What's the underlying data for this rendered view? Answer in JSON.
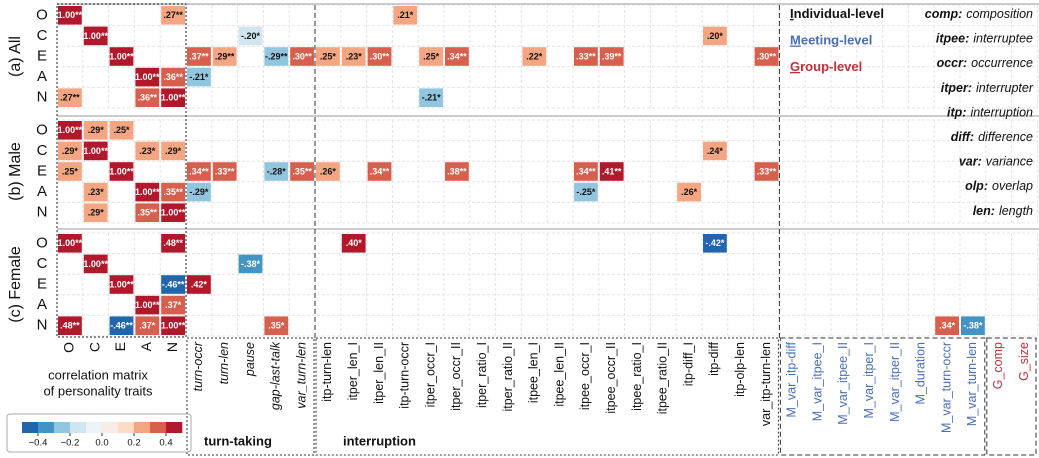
{
  "chart_data": {
    "type": "heatmap",
    "rows": [
      "O",
      "C",
      "E",
      "A",
      "N"
    ],
    "column_groups": [
      {
        "label_lines": [
          "correlation matrix",
          "of personality traits"
        ],
        "columns": [
          "O",
          "C",
          "E",
          "A",
          "N"
        ]
      },
      {
        "label": "turn-taking",
        "italic": true,
        "columns": [
          "turn-occr",
          "turn-len",
          "pause",
          "gap-last-talk",
          "var_turn-len"
        ]
      },
      {
        "label": "interruption",
        "columns": [
          "itp-turn-len",
          "itper_len_I",
          "itper_len_II",
          "itp-turn-occr",
          "itper_occr_I",
          "itper_occr_II",
          "itper_ratio_I",
          "itper_ratio_II",
          "itpee_len_I",
          "itpee_len_II",
          "itpee_occr_I",
          "itpee_occr_II",
          "itpee_ratio_I",
          "itpee_ratio_II",
          "itp-diff_I",
          "itp-diff",
          "itp-olp-len",
          "var_itp-turn-len"
        ]
      },
      {
        "color": "#4a6fb5",
        "columns": [
          "M_var_itp-diff",
          "M_var_itpee_I",
          "M_var_itpee_II",
          "M_var_itper_I",
          "M_var_itper_II",
          "M_duration",
          "M_var_turn-occr",
          "M_var_turn-len"
        ]
      },
      {
        "color": "#c0303a",
        "columns": [
          "G_comp",
          "G_size"
        ]
      }
    ],
    "panels": [
      {
        "label": "(a) All",
        "cells": [
          {
            "row": "O",
            "col": "O",
            "value": 1.0,
            "value_label": "1.00**"
          },
          {
            "row": "O",
            "col": "N",
            "value": 0.27,
            "value_label": ".27**"
          },
          {
            "row": "O",
            "col": "itp-turn-occr",
            "value": 0.21,
            "value_label": ".21*"
          },
          {
            "row": "C",
            "col": "C",
            "value": 1.0,
            "value_label": "1.00**"
          },
          {
            "row": "C",
            "col": "pause",
            "value": -0.2,
            "value_label": "-.20*"
          },
          {
            "row": "C",
            "col": "itp-diff",
            "value": 0.2,
            "value_label": ".20*"
          },
          {
            "row": "E",
            "col": "E",
            "value": 1.0,
            "value_label": "1.00**"
          },
          {
            "row": "E",
            "col": "turn-occr",
            "value": 0.37,
            "value_label": ".37**"
          },
          {
            "row": "E",
            "col": "turn-len",
            "value": 0.29,
            "value_label": ".29**"
          },
          {
            "row": "E",
            "col": "gap-last-talk",
            "value": -0.29,
            "value_label": "-.29**"
          },
          {
            "row": "E",
            "col": "var_turn-len",
            "value": 0.3,
            "value_label": ".30**"
          },
          {
            "row": "E",
            "col": "itp-turn-len",
            "value": 0.25,
            "value_label": ".25*"
          },
          {
            "row": "E",
            "col": "itper_len_I",
            "value": 0.23,
            "value_label": ".23*"
          },
          {
            "row": "E",
            "col": "itper_len_II",
            "value": 0.3,
            "value_label": ".30**"
          },
          {
            "row": "E",
            "col": "itper_occr_I",
            "value": 0.25,
            "value_label": ".25*"
          },
          {
            "row": "E",
            "col": "itper_occr_II",
            "value": 0.34,
            "value_label": ".34**"
          },
          {
            "row": "E",
            "col": "itpee_len_I",
            "value": 0.22,
            "value_label": ".22*"
          },
          {
            "row": "E",
            "col": "itpee_occr_I",
            "value": 0.33,
            "value_label": ".33**"
          },
          {
            "row": "E",
            "col": "itpee_occr_II",
            "value": 0.39,
            "value_label": ".39**"
          },
          {
            "row": "E",
            "col": "var_itp-turn-len",
            "value": 0.3,
            "value_label": ".30**"
          },
          {
            "row": "A",
            "col": "A",
            "value": 1.0,
            "value_label": "1.00**"
          },
          {
            "row": "A",
            "col": "N",
            "value": 0.36,
            "value_label": ".36**"
          },
          {
            "row": "A",
            "col": "turn-occr",
            "value": -0.21,
            "value_label": "-.21*"
          },
          {
            "row": "N",
            "col": "O",
            "value": 0.27,
            "value_label": ".27**"
          },
          {
            "row": "N",
            "col": "A",
            "value": 0.36,
            "value_label": ".36**"
          },
          {
            "row": "N",
            "col": "N",
            "value": 1.0,
            "value_label": "1.00**"
          },
          {
            "row": "N",
            "col": "itper_occr_I",
            "value": -0.21,
            "value_label": "-.21*"
          }
        ]
      },
      {
        "label": "(b) Male",
        "cells": [
          {
            "row": "O",
            "col": "O",
            "value": 1.0,
            "value_label": "1.00**"
          },
          {
            "row": "O",
            "col": "C",
            "value": 0.29,
            "value_label": ".29*"
          },
          {
            "row": "O",
            "col": "E",
            "value": 0.25,
            "value_label": ".25*"
          },
          {
            "row": "C",
            "col": "O",
            "value": 0.29,
            "value_label": ".29*"
          },
          {
            "row": "C",
            "col": "C",
            "value": 1.0,
            "value_label": "1.00**"
          },
          {
            "row": "C",
            "col": "A",
            "value": 0.23,
            "value_label": ".23*"
          },
          {
            "row": "C",
            "col": "N",
            "value": 0.29,
            "value_label": ".29*"
          },
          {
            "row": "C",
            "col": "itp-diff",
            "value": 0.24,
            "value_label": ".24*"
          },
          {
            "row": "E",
            "col": "O",
            "value": 0.25,
            "value_label": ".25*"
          },
          {
            "row": "E",
            "col": "E",
            "value": 1.0,
            "value_label": "1.00**"
          },
          {
            "row": "E",
            "col": "turn-occr",
            "value": 0.34,
            "value_label": ".34**"
          },
          {
            "row": "E",
            "col": "turn-len",
            "value": 0.33,
            "value_label": ".33**"
          },
          {
            "row": "E",
            "col": "gap-last-talk",
            "value": -0.28,
            "value_label": "-.28*"
          },
          {
            "row": "E",
            "col": "var_turn-len",
            "value": 0.35,
            "value_label": ".35**"
          },
          {
            "row": "E",
            "col": "itp-turn-len",
            "value": 0.26,
            "value_label": ".26*"
          },
          {
            "row": "E",
            "col": "itper_len_II",
            "value": 0.34,
            "value_label": ".34**"
          },
          {
            "row": "E",
            "col": "itper_occr_II",
            "value": 0.38,
            "value_label": ".38**"
          },
          {
            "row": "E",
            "col": "itpee_occr_I",
            "value": 0.34,
            "value_label": ".34**"
          },
          {
            "row": "E",
            "col": "itpee_occr_II",
            "value": 0.41,
            "value_label": ".41**"
          },
          {
            "row": "E",
            "col": "var_itp-turn-len",
            "value": 0.33,
            "value_label": ".33**"
          },
          {
            "row": "A",
            "col": "C",
            "value": 0.23,
            "value_label": ".23*"
          },
          {
            "row": "A",
            "col": "A",
            "value": 1.0,
            "value_label": "1.00**"
          },
          {
            "row": "A",
            "col": "N",
            "value": 0.35,
            "value_label": ".35**"
          },
          {
            "row": "A",
            "col": "turn-occr",
            "value": -0.29,
            "value_label": "-.29*"
          },
          {
            "row": "A",
            "col": "itpee_occr_I",
            "value": -0.25,
            "value_label": "-.25*"
          },
          {
            "row": "A",
            "col": "itp-diff_I",
            "value": 0.26,
            "value_label": ".26*"
          },
          {
            "row": "N",
            "col": "C",
            "value": 0.29,
            "value_label": ".29*"
          },
          {
            "row": "N",
            "col": "A",
            "value": 0.35,
            "value_label": ".35**"
          },
          {
            "row": "N",
            "col": "N",
            "value": 1.0,
            "value_label": "1.00**"
          }
        ]
      },
      {
        "label": "(c) Female",
        "cells": [
          {
            "row": "O",
            "col": "O",
            "value": 1.0,
            "value_label": "1.00**"
          },
          {
            "row": "O",
            "col": "N",
            "value": 0.48,
            "value_label": ".48**"
          },
          {
            "row": "O",
            "col": "itper_len_I",
            "value": 0.4,
            "value_label": ".40*"
          },
          {
            "row": "O",
            "col": "itp-diff",
            "value": -0.42,
            "value_label": "-.42*"
          },
          {
            "row": "C",
            "col": "C",
            "value": 1.0,
            "value_label": "1.00**"
          },
          {
            "row": "C",
            "col": "pause",
            "value": -0.38,
            "value_label": "-.38*"
          },
          {
            "row": "E",
            "col": "E",
            "value": 1.0,
            "value_label": "1.00**"
          },
          {
            "row": "E",
            "col": "N",
            "value": -0.46,
            "value_label": "-.46**"
          },
          {
            "row": "E",
            "col": "turn-occr",
            "value": 0.42,
            "value_label": ".42*"
          },
          {
            "row": "A",
            "col": "A",
            "value": 1.0,
            "value_label": "1.00**"
          },
          {
            "row": "A",
            "col": "N",
            "value": 0.37,
            "value_label": ".37*"
          },
          {
            "row": "N",
            "col": "O",
            "value": 0.48,
            "value_label": ".48**"
          },
          {
            "row": "N",
            "col": "E",
            "value": -0.46,
            "value_label": "-.46**"
          },
          {
            "row": "N",
            "col": "A",
            "value": 0.37,
            "value_label": ".37*"
          },
          {
            "row": "N",
            "col": "N",
            "value": 1.0,
            "value_label": "1.00**"
          },
          {
            "row": "N",
            "col": "gap-last-talk",
            "value": 0.35,
            "value_label": ".35*"
          },
          {
            "row": "N",
            "col": "M_var_turn-occr",
            "value": 0.34,
            "value_label": ".34*"
          },
          {
            "row": "N",
            "col": "M_var_turn-len",
            "value": -0.38,
            "value_label": "-.38*"
          }
        ]
      }
    ],
    "colorbar": {
      "lim": [
        -0.5,
        0.5
      ],
      "colors": [
        "#2166ac",
        "#4393c3",
        "#92c5de",
        "#d1e5f0",
        "#eef3f7",
        "#f9ece6",
        "#fddbc7",
        "#f4a582",
        "#d6604d",
        "#b2182b"
      ],
      "ticks": [
        {
          "value": -0.4,
          "label": "−0.4"
        },
        {
          "value": -0.2,
          "label": "−0.2"
        },
        {
          "value": 0,
          "label": "0.0"
        },
        0.2,
        0.4
      ]
    },
    "legend": {
      "levels": [
        {
          "text": "Individual-level",
          "color": "#111111"
        },
        {
          "text": "Meeting-level",
          "color": "#4a6fb5"
        },
        {
          "text": "Group-level",
          "color": "#c0303a"
        }
      ],
      "abbreviations": [
        {
          "abbr": "comp:",
          "meaning": "composition"
        },
        {
          "abbr": "itpee:",
          "meaning": "interruptee"
        },
        {
          "abbr": "occr:",
          "meaning": "occurrence"
        },
        {
          "abbr": "itper:",
          "meaning": "interrupter"
        },
        {
          "abbr": "itp:",
          "meaning": "interruption"
        },
        {
          "abbr": "diff:",
          "meaning": "difference"
        },
        {
          "abbr": "var:",
          "meaning": "variance"
        },
        {
          "abbr": "olp:",
          "meaning": "overlap"
        },
        {
          "abbr": "len:",
          "meaning": "length"
        }
      ]
    }
  }
}
